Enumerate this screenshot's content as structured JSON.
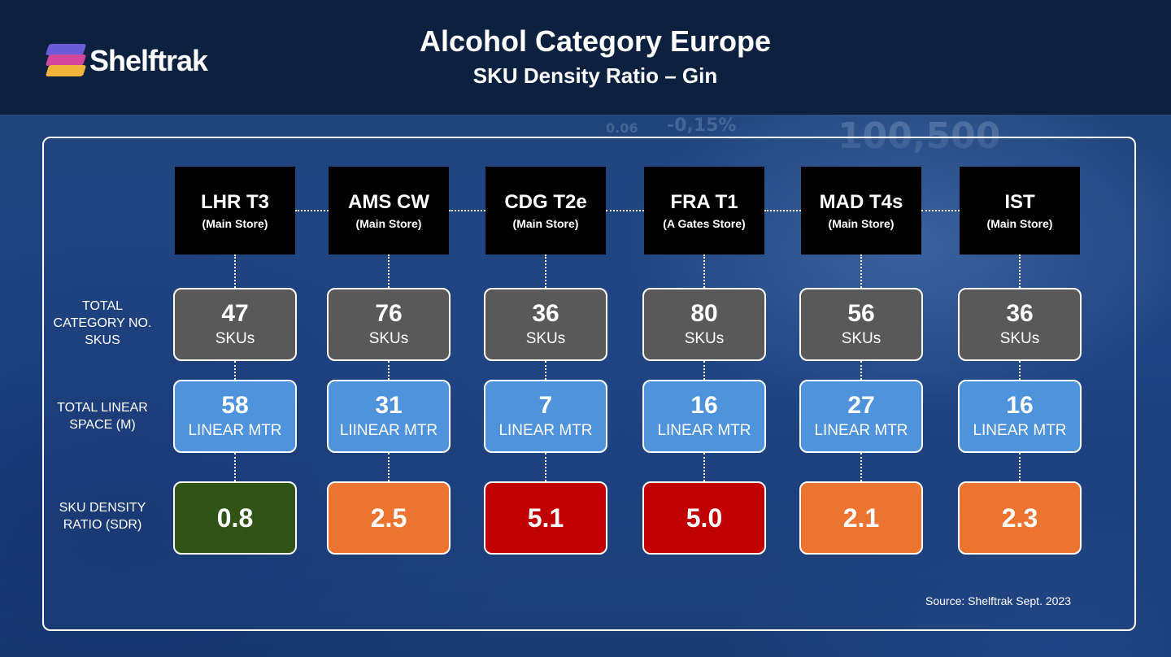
{
  "brand": {
    "name": "Shelftrak",
    "icon": "stacked-layers-icon"
  },
  "header": {
    "title": "Alcohol Category Europe",
    "subtitle": "SKU Density Ratio –  Gin"
  },
  "row_labels": {
    "skus": [
      "TOTAL",
      "CATEGORY NO.",
      "SKUS"
    ],
    "linear": [
      "TOTAL LINEAR",
      "SPACE (M)"
    ],
    "sdr": [
      "SKU DENSITY",
      "RATIO (SDR)"
    ]
  },
  "colors": {
    "sku_box": "#595959",
    "linear_box": "#4e93dc",
    "sdr_low": "#2f5416",
    "sdr_mid": "#eb7431",
    "sdr_high": "#c00000"
  },
  "stores": [
    {
      "code": "LHR T3",
      "type": "(Main Store)",
      "skus": "47",
      "skus_unit": "SKUs",
      "linear": "58",
      "linear_unit": "LINEAR MTR",
      "sdr": "0.8",
      "sdr_color": "#2f5416"
    },
    {
      "code": "AMS CW",
      "type": "(Main Store)",
      "skus": "76",
      "skus_unit": "SKUs",
      "linear": "31",
      "linear_unit": "LIINEAR MTR",
      "sdr": "2.5",
      "sdr_color": "#eb7431"
    },
    {
      "code": "CDG T2e",
      "type": "(Main Store)",
      "skus": "36",
      "skus_unit": "SKUs",
      "linear": "7",
      "linear_unit": "LINEAR MTR",
      "sdr": "5.1",
      "sdr_color": "#c00000"
    },
    {
      "code": "FRA T1",
      "type": "(A Gates Store)",
      "skus": "80",
      "skus_unit": "SKUs",
      "linear": "16",
      "linear_unit": "LINEAR MTR",
      "sdr": "5.0",
      "sdr_color": "#c00000"
    },
    {
      "code": "MAD T4s",
      "type": "(Main Store)",
      "skus": "56",
      "skus_unit": "SKUs",
      "linear": "27",
      "linear_unit": "LINEAR MTR",
      "sdr": "2.1",
      "sdr_color": "#eb7431"
    },
    {
      "code": "IST",
      "type": "(Main Store)",
      "skus": "36",
      "skus_unit": "SKUs",
      "linear": "16",
      "linear_unit": "LINEAR MTR",
      "sdr": "2.3",
      "sdr_color": "#eb7431"
    }
  ],
  "footer": {
    "source": "Source: Shelftrak Sept. 2023"
  }
}
